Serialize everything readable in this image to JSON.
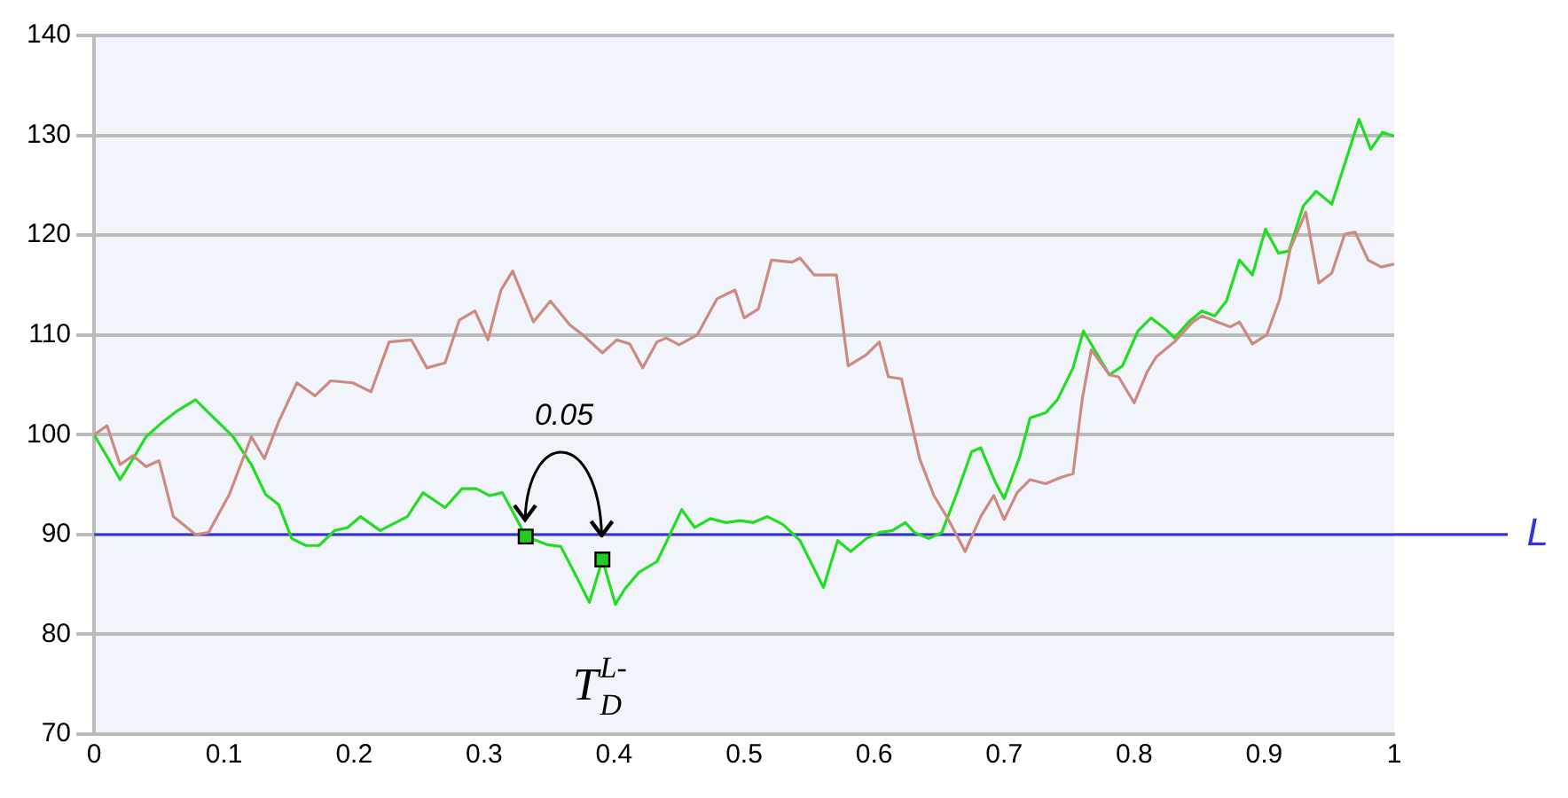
{
  "chart_data": {
    "type": "line",
    "xlim": [
      0,
      1
    ],
    "xticks": [
      0,
      0.1,
      0.2,
      0.3,
      0.4,
      0.5,
      0.6,
      0.7,
      0.8,
      0.9,
      1
    ],
    "ylim": [
      70,
      140
    ],
    "yticks": [
      70,
      80,
      90,
      100,
      110,
      120,
      130,
      140
    ],
    "grid": "y",
    "legend": false,
    "marker": "none",
    "line_style": "solid",
    "series": [
      {
        "color": "#cc8a80",
        "x": [
          0,
          0.01,
          0.02,
          0.03,
          0.04,
          0.05,
          0.061,
          0.078,
          0.088,
          0.104,
          0.121,
          0.131,
          0.142,
          0.156,
          0.17,
          0.182,
          0.199,
          0.213,
          0.227,
          0.244,
          0.256,
          0.27,
          0.281,
          0.293,
          0.303,
          0.313,
          0.322,
          0.338,
          0.351,
          0.366,
          0.376,
          0.391,
          0.402,
          0.412,
          0.422,
          0.433,
          0.44,
          0.45,
          0.464,
          0.479,
          0.493,
          0.5,
          0.511,
          0.521,
          0.537,
          0.543,
          0.554,
          0.571,
          0.58,
          0.594,
          0.604,
          0.611,
          0.621,
          0.635,
          0.646,
          0.658,
          0.67,
          0.682,
          0.692,
          0.7,
          0.71,
          0.72,
          0.732,
          0.743,
          0.753,
          0.76,
          0.767,
          0.781,
          0.788,
          0.8,
          0.81,
          0.817,
          0.831,
          0.845,
          0.852,
          0.874,
          0.881,
          0.891,
          0.902,
          0.912,
          0.92,
          0.932,
          0.942,
          0.952,
          0.962,
          0.97,
          0.98,
          0.99,
          1
        ],
        "values": [
          100,
          100.9,
          97,
          97.9,
          96.8,
          97.4,
          91.8,
          90,
          90.2,
          94,
          99.8,
          97.6,
          101.3,
          105.2,
          103.9,
          105.4,
          105.2,
          104.3,
          109.3,
          109.5,
          106.7,
          107.2,
          111.5,
          112.4,
          109.5,
          114.5,
          116.4,
          111.3,
          113.4,
          111,
          110,
          108.2,
          109.5,
          109.1,
          106.7,
          109.3,
          109.7,
          109,
          110,
          113.6,
          114.5,
          111.7,
          112.6,
          117.5,
          117.3,
          117.7,
          116,
          116,
          106.9,
          108,
          109.3,
          105.8,
          105.6,
          97.6,
          93.9,
          91.3,
          88.3,
          91.8,
          93.9,
          91.5,
          94.2,
          95.5,
          95.1,
          95.7,
          96.1,
          103.5,
          108.5,
          106,
          105.8,
          103.2,
          106.3,
          107.8,
          109.3,
          111.3,
          111.9,
          110.8,
          111.3,
          109.1,
          110,
          113.6,
          118.6,
          122.3,
          115.2,
          116.2,
          120.1,
          120.3,
          117.5,
          116.8,
          117.1
        ]
      },
      {
        "color": "#22dd22",
        "x": [
          0,
          0.01,
          0.02,
          0.03,
          0.04,
          0.053,
          0.064,
          0.078,
          0.092,
          0.107,
          0.121,
          0.132,
          0.142,
          0.152,
          0.163,
          0.173,
          0.185,
          0.195,
          0.205,
          0.22,
          0.241,
          0.253,
          0.27,
          0.283,
          0.294,
          0.304,
          0.314,
          0.324,
          0.332,
          0.348,
          0.359,
          0.371,
          0.381,
          0.391,
          0.401,
          0.408,
          0.419,
          0.433,
          0.44,
          0.452,
          0.462,
          0.474,
          0.486,
          0.497,
          0.507,
          0.518,
          0.53,
          0.543,
          0.561,
          0.572,
          0.582,
          0.594,
          0.604,
          0.614,
          0.624,
          0.631,
          0.642,
          0.652,
          0.663,
          0.675,
          0.682,
          0.693,
          0.7,
          0.712,
          0.72,
          0.732,
          0.741,
          0.753,
          0.761,
          0.771,
          0.781,
          0.791,
          0.803,
          0.813,
          0.824,
          0.831,
          0.842,
          0.852,
          0.862,
          0.871,
          0.881,
          0.891,
          0.901,
          0.911,
          0.919,
          0.93,
          0.94,
          0.952,
          0.973,
          0.982,
          0.991,
          1
        ],
        "values": [
          100,
          97.8,
          95.5,
          97.6,
          99.8,
          101.3,
          102.4,
          103.5,
          101.7,
          99.8,
          97,
          94,
          93,
          89.6,
          88.9,
          88.9,
          90.4,
          90.7,
          91.8,
          90.4,
          91.8,
          94.2,
          92.7,
          94.6,
          94.6,
          93.9,
          94.2,
          91.8,
          89.8,
          89,
          88.8,
          85.8,
          83.2,
          87.5,
          83,
          84.5,
          86.2,
          87.3,
          89.2,
          92.5,
          90.7,
          91.6,
          91.2,
          91.4,
          91.2,
          91.8,
          91,
          89.4,
          84.7,
          89.4,
          88.3,
          89.6,
          90.2,
          90.4,
          91.2,
          90.2,
          89.6,
          90.2,
          93.9,
          98.3,
          98.7,
          95.3,
          93.6,
          97.8,
          101.7,
          102.2,
          103.5,
          106.7,
          110.4,
          108.2,
          106,
          106.9,
          110.4,
          111.7,
          110.6,
          109.7,
          111.3,
          112.4,
          111.9,
          113.4,
          117.5,
          116,
          120.6,
          118.2,
          118.4,
          122.9,
          124.4,
          123.1,
          131.6,
          128.6,
          130.3,
          129.9
        ]
      },
      {
        "type": "scatter",
        "marker": "square",
        "color": "#22cc22",
        "x": [
          0.332,
          0.391
        ],
        "values": [
          89.8,
          87.5
        ]
      }
    ],
    "ref_lines": [
      {
        "axis": "y",
        "value": 90,
        "label": "L",
        "color": "#3333dd"
      }
    ],
    "annotations": [
      "0.05",
      "T$_{D}$$^{L-}$"
    ]
  }
}
